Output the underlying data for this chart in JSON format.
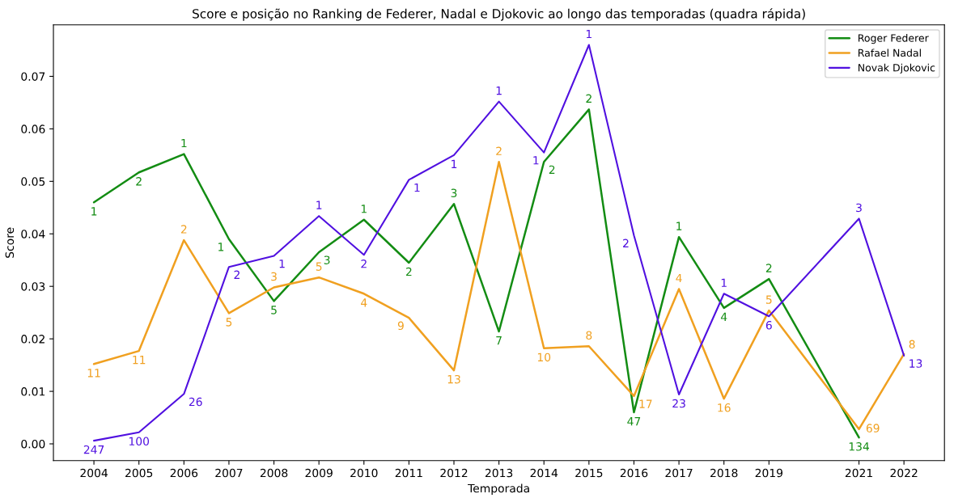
{
  "chart_data": {
    "type": "line",
    "title": "Score e posição no Ranking de Federer, Nadal e Djokovic ao longo das temporadas (quadra rápida)",
    "xlabel": "Temporada",
    "ylabel": "Score",
    "xlim": [
      2003.1,
      2022.9
    ],
    "xticks": [
      2004,
      2005,
      2006,
      2007,
      2008,
      2009,
      2010,
      2011,
      2012,
      2013,
      2014,
      2015,
      2016,
      2017,
      2018,
      2019,
      2021,
      2022
    ],
    "ylim": [
      -0.0032,
      0.0798
    ],
    "yticks": [
      {
        "value": 0,
        "label": "0.00"
      },
      {
        "value": 0.01,
        "label": "0.01"
      },
      {
        "value": 0.02,
        "label": "0.02"
      },
      {
        "value": 0.03,
        "label": "0.03"
      },
      {
        "value": 0.04,
        "label": "0.04"
      },
      {
        "value": 0.05,
        "label": "0.05"
      },
      {
        "value": 0.06,
        "label": "0.06"
      },
      {
        "value": 0.07,
        "label": "0.07"
      }
    ],
    "grid": false,
    "legend": "top right",
    "marker": "none",
    "line_style": "solid",
    "series": [
      {
        "name": "Roger Federer",
        "color": "#138c13",
        "x": [
          2004,
          2005,
          2006,
          2007,
          2008,
          2009,
          2010,
          2011,
          2012,
          2013,
          2014,
          2015,
          2016,
          2017,
          2018,
          2019,
          2021
        ],
        "values": [
          0.046,
          0.0517,
          0.0552,
          0.039,
          0.0272,
          0.0365,
          0.0427,
          0.0345,
          0.0457,
          0.0214,
          0.0537,
          0.0637,
          0.006,
          0.0394,
          0.0259,
          0.0314,
          0.0012
        ]
      },
      {
        "name": "Rafael Nadal",
        "color": "#f0a020",
        "x": [
          2004,
          2005,
          2006,
          2007,
          2008,
          2009,
          2010,
          2011,
          2012,
          2013,
          2014,
          2015,
          2016,
          2017,
          2018,
          2019,
          2021,
          2022
        ],
        "values": [
          0.0152,
          0.0177,
          0.0388,
          0.0249,
          0.0298,
          0.0317,
          0.0286,
          0.024,
          0.014,
          0.0537,
          0.0182,
          0.0186,
          0.0091,
          0.0295,
          0.0086,
          0.0254,
          0.0028,
          0.0171
        ]
      },
      {
        "name": "Novak Djokovic",
        "color": "#5010e0",
        "x": [
          2004,
          2005,
          2006,
          2007,
          2008,
          2009,
          2010,
          2011,
          2012,
          2013,
          2014,
          2015,
          2016,
          2017,
          2018,
          2019,
          2021,
          2022
        ],
        "values": [
          0.0006,
          0.0022,
          0.0095,
          0.0337,
          0.0358,
          0.0434,
          0.036,
          0.0503,
          0.055,
          0.0652,
          0.0555,
          0.076,
          0.0397,
          0.0094,
          0.0286,
          0.0243,
          0.0429,
          0.0168
        ]
      }
    ],
    "annotations": [
      {
        "text": "1",
        "x": 2004,
        "y": 0.046
      },
      {
        "text": "2",
        "x": 2005,
        "y": 0.0517
      },
      {
        "text": "1",
        "x": 2006,
        "y": 0.0552
      },
      {
        "text": "1",
        "x": 2007,
        "y": 0.039
      },
      {
        "text": "5",
        "x": 2008,
        "y": 0.0272
      },
      {
        "text": "3",
        "x": 2009,
        "y": 0.0365
      },
      {
        "text": "1",
        "x": 2010,
        "y": 0.0427
      },
      {
        "text": "2",
        "x": 2011,
        "y": 0.0345
      },
      {
        "text": "3",
        "x": 2012,
        "y": 0.0457
      },
      {
        "text": "7",
        "x": 2013,
        "y": 0.0214
      },
      {
        "text": "2",
        "x": 2014,
        "y": 0.0537
      },
      {
        "text": "2",
        "x": 2015,
        "y": 0.0637
      },
      {
        "text": "47",
        "x": 2016,
        "y": 0.006
      },
      {
        "text": "1",
        "x": 2017,
        "y": 0.0394
      },
      {
        "text": "4",
        "x": 2018,
        "y": 0.0259
      },
      {
        "text": "2",
        "x": 2019,
        "y": 0.0314
      },
      {
        "text": "134",
        "x": 2021,
        "y": 0.0012
      },
      {
        "text": "11",
        "x": 2004,
        "y": 0.0152
      },
      {
        "text": "11",
        "x": 2005,
        "y": 0.0177
      },
      {
        "text": "2",
        "x": 2006,
        "y": 0.0388
      },
      {
        "text": "5",
        "x": 2007,
        "y": 0.0249
      },
      {
        "text": "3",
        "x": 2008,
        "y": 0.0298
      },
      {
        "text": "5",
        "x": 2009,
        "y": 0.0317
      },
      {
        "text": "4",
        "x": 2010,
        "y": 0.0286
      },
      {
        "text": "9",
        "x": 2011,
        "y": 0.024
      },
      {
        "text": "13",
        "x": 2012,
        "y": 0.014
      },
      {
        "text": "2",
        "x": 2013,
        "y": 0.0537
      },
      {
        "text": "10",
        "x": 2014,
        "y": 0.0182
      },
      {
        "text": "8",
        "x": 2015,
        "y": 0.0186
      },
      {
        "text": "17",
        "x": 2016,
        "y": 0.0091
      },
      {
        "text": "4",
        "x": 2017,
        "y": 0.0295
      },
      {
        "text": "16",
        "x": 2018,
        "y": 0.0086
      },
      {
        "text": "5",
        "x": 2019,
        "y": 0.0254
      },
      {
        "text": "69",
        "x": 2021,
        "y": 0.0028
      },
      {
        "text": "8",
        "x": 2022,
        "y": 0.0171
      },
      {
        "text": "247",
        "x": 2004,
        "y": 0.0006
      },
      {
        "text": "100",
        "x": 2005,
        "y": 0.0022
      },
      {
        "text": "26",
        "x": 2006,
        "y": 0.0095
      },
      {
        "text": "2",
        "x": 2007,
        "y": 0.0337
      },
      {
        "text": "1",
        "x": 2008,
        "y": 0.0358
      },
      {
        "text": "1",
        "x": 2009,
        "y": 0.0434
      },
      {
        "text": "2",
        "x": 2010,
        "y": 0.036
      },
      {
        "text": "1",
        "x": 2011,
        "y": 0.0503
      },
      {
        "text": "1",
        "x": 2012,
        "y": 0.055
      },
      {
        "text": "1",
        "x": 2013,
        "y": 0.0652
      },
      {
        "text": "1",
        "x": 2014,
        "y": 0.0555
      },
      {
        "text": "1",
        "x": 2015,
        "y": 0.076
      },
      {
        "text": "2",
        "x": 2016,
        "y": 0.0397
      },
      {
        "text": "23",
        "x": 2017,
        "y": 0.0094
      },
      {
        "text": "1",
        "x": 2018,
        "y": 0.0286
      },
      {
        "text": "6",
        "x": 2019,
        "y": 0.0243
      },
      {
        "text": "3",
        "x": 2021,
        "y": 0.0429
      },
      {
        "text": "13",
        "x": 2022,
        "y": 0.0168
      }
    ]
  }
}
